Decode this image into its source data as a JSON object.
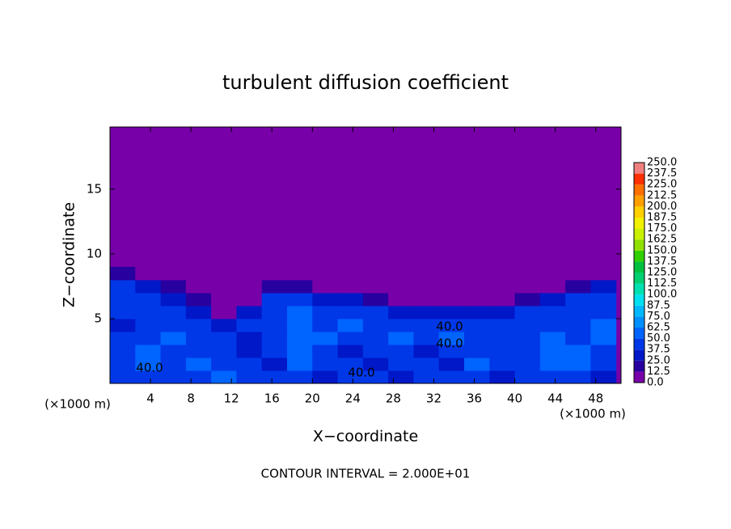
{
  "chart_data": {
    "type": "contour",
    "title": "turbulent diffusion coefficient",
    "x_label": "X−coordinate",
    "y_label": "Z−coordinate",
    "x_unit": "(×1000 m)",
    "y_unit": "(×1000 m)",
    "footer": "CONTOUR INTERVAL = 2.000E+01",
    "contour_labels": [
      "40.0",
      "40.0",
      "40.0",
      "40.0"
    ],
    "xlim": [
      0,
      50.5
    ],
    "ylim": [
      0,
      19.8
    ],
    "xticks": [
      4,
      8,
      12,
      16,
      20,
      24,
      28,
      32,
      36,
      40,
      44,
      48
    ],
    "yticks": [
      5,
      10,
      15
    ],
    "x": [
      1.25,
      3.75,
      6.25,
      8.75,
      11.25,
      13.75,
      16.25,
      18.75,
      21.25,
      23.75,
      26.25,
      28.75,
      31.25,
      33.75,
      36.25,
      38.75,
      41.25,
      43.75,
      46.25,
      48.75
    ],
    "y": [
      0.5,
      1.5,
      2.5,
      3.5,
      4.5,
      5.5,
      6.5,
      7.5,
      8.5
    ],
    "z": [
      [
        40,
        45,
        40,
        45,
        50,
        40,
        45,
        40,
        35,
        40,
        40,
        35,
        40,
        45,
        40,
        35,
        40,
        45,
        40,
        35
      ],
      [
        40,
        50,
        45,
        50,
        40,
        45,
        30,
        50,
        40,
        45,
        35,
        40,
        40,
        35,
        50,
        40,
        45,
        55,
        50,
        45
      ],
      [
        45,
        50,
        45,
        40,
        45,
        30,
        40,
        55,
        40,
        35,
        40,
        45,
        30,
        40,
        45,
        40,
        45,
        50,
        55,
        45
      ],
      [
        40,
        45,
        50,
        45,
        40,
        35,
        40,
        60,
        50,
        40,
        45,
        50,
        45,
        50,
        40,
        45,
        40,
        50,
        45,
        50
      ],
      [
        35,
        40,
        45,
        40,
        30,
        40,
        45,
        55,
        45,
        50,
        45,
        40,
        42,
        40,
        45,
        40,
        45,
        40,
        45,
        50
      ],
      [
        40,
        45,
        40,
        35,
        0,
        25,
        40,
        50,
        40,
        45,
        40,
        30,
        30,
        25,
        25,
        30,
        40,
        40,
        45,
        45
      ],
      [
        45,
        40,
        35,
        20,
        0,
        0,
        40,
        45,
        30,
        30,
        15,
        0,
        0,
        0,
        0,
        0,
        15,
        30,
        40,
        40
      ],
      [
        40,
        30,
        20,
        0,
        0,
        0,
        15,
        15,
        0,
        0,
        0,
        0,
        0,
        0,
        0,
        0,
        0,
        0,
        15,
        30
      ],
      [
        20,
        0,
        0,
        0,
        0,
        0,
        0,
        0,
        0,
        0,
        0,
        0,
        0,
        0,
        0,
        0,
        0,
        0,
        0,
        0
      ]
    ],
    "levels": [
      {
        "value": 0,
        "label": "0.0"
      },
      12.5,
      {
        "value": 25,
        "label": "25.0"
      },
      37.5,
      {
        "value": 50,
        "label": "50.0"
      },
      62.5,
      {
        "value": 75,
        "label": "75.0"
      },
      87.5,
      {
        "value": 100,
        "label": "100.0"
      },
      112.5,
      {
        "value": 125,
        "label": "125.0"
      },
      137.5,
      {
        "value": 150,
        "label": "150.0"
      },
      162.5,
      {
        "value": 175,
        "label": "175.0"
      },
      187.5,
      {
        "value": 200,
        "label": "200.0"
      },
      212.5,
      {
        "value": 225,
        "label": "225.0"
      },
      237.5,
      {
        "value": 250,
        "label": "250.0"
      }
    ],
    "colors": [
      "#7800a8",
      "#2800a0",
      "#0018c8",
      "#0038e8",
      "#0064ff",
      "#0090ff",
      "#00b8ff",
      "#00e0f0",
      "#00e0b0",
      "#00d070",
      "#00c040",
      "#30d000",
      "#90e000",
      "#c8f000",
      "#f0f000",
      "#ffd000",
      "#ffa000",
      "#ff7000",
      "#ff3000",
      "#f08080"
    ]
  }
}
